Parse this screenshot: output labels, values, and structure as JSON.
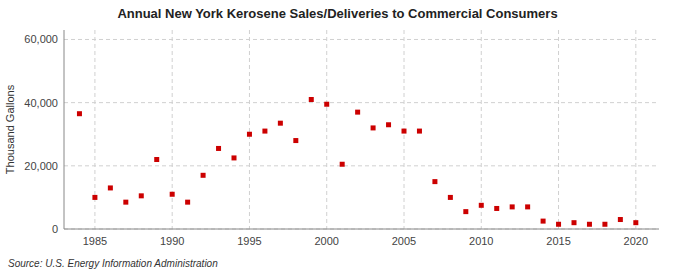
{
  "chart_data": {
    "type": "scatter",
    "title": "Annual New York Kerosene Sales/Deliveries to Commercial Consumers",
    "ylabel": "Thousand Gallons",
    "source": "Source: U.S. Energy Information Administration",
    "color": "#cc0000",
    "marker": "square",
    "grid": true,
    "x": [
      1984,
      1985,
      1986,
      1987,
      1988,
      1989,
      1990,
      1991,
      1992,
      1993,
      1994,
      1995,
      1996,
      1997,
      1998,
      1999,
      2000,
      2001,
      2002,
      2003,
      2004,
      2005,
      2006,
      2007,
      2008,
      2009,
      2010,
      2011,
      2012,
      2013,
      2014,
      2015,
      2016,
      2017,
      2018,
      2019,
      2020
    ],
    "values": [
      36500,
      10000,
      13000,
      8500,
      10500,
      22000,
      11000,
      8500,
      17000,
      25500,
      22500,
      30000,
      31000,
      33500,
      28000,
      41000,
      39500,
      20500,
      37000,
      32000,
      33000,
      31000,
      31000,
      15000,
      10000,
      5500,
      7500,
      6500,
      7000,
      7000,
      2500,
      1500,
      2000,
      1500,
      1500,
      3000,
      2000
    ],
    "xlim": [
      1983,
      2021.5
    ],
    "ylim": [
      0,
      63000
    ],
    "xticks": [
      1985,
      1990,
      1995,
      2000,
      2005,
      2010,
      2015,
      2020
    ],
    "yticks": [
      0,
      {
        "value": 20000,
        "label": "20,000"
      },
      {
        "value": 40000,
        "label": "40,000"
      },
      {
        "value": 60000,
        "label": "60,000"
      }
    ]
  }
}
